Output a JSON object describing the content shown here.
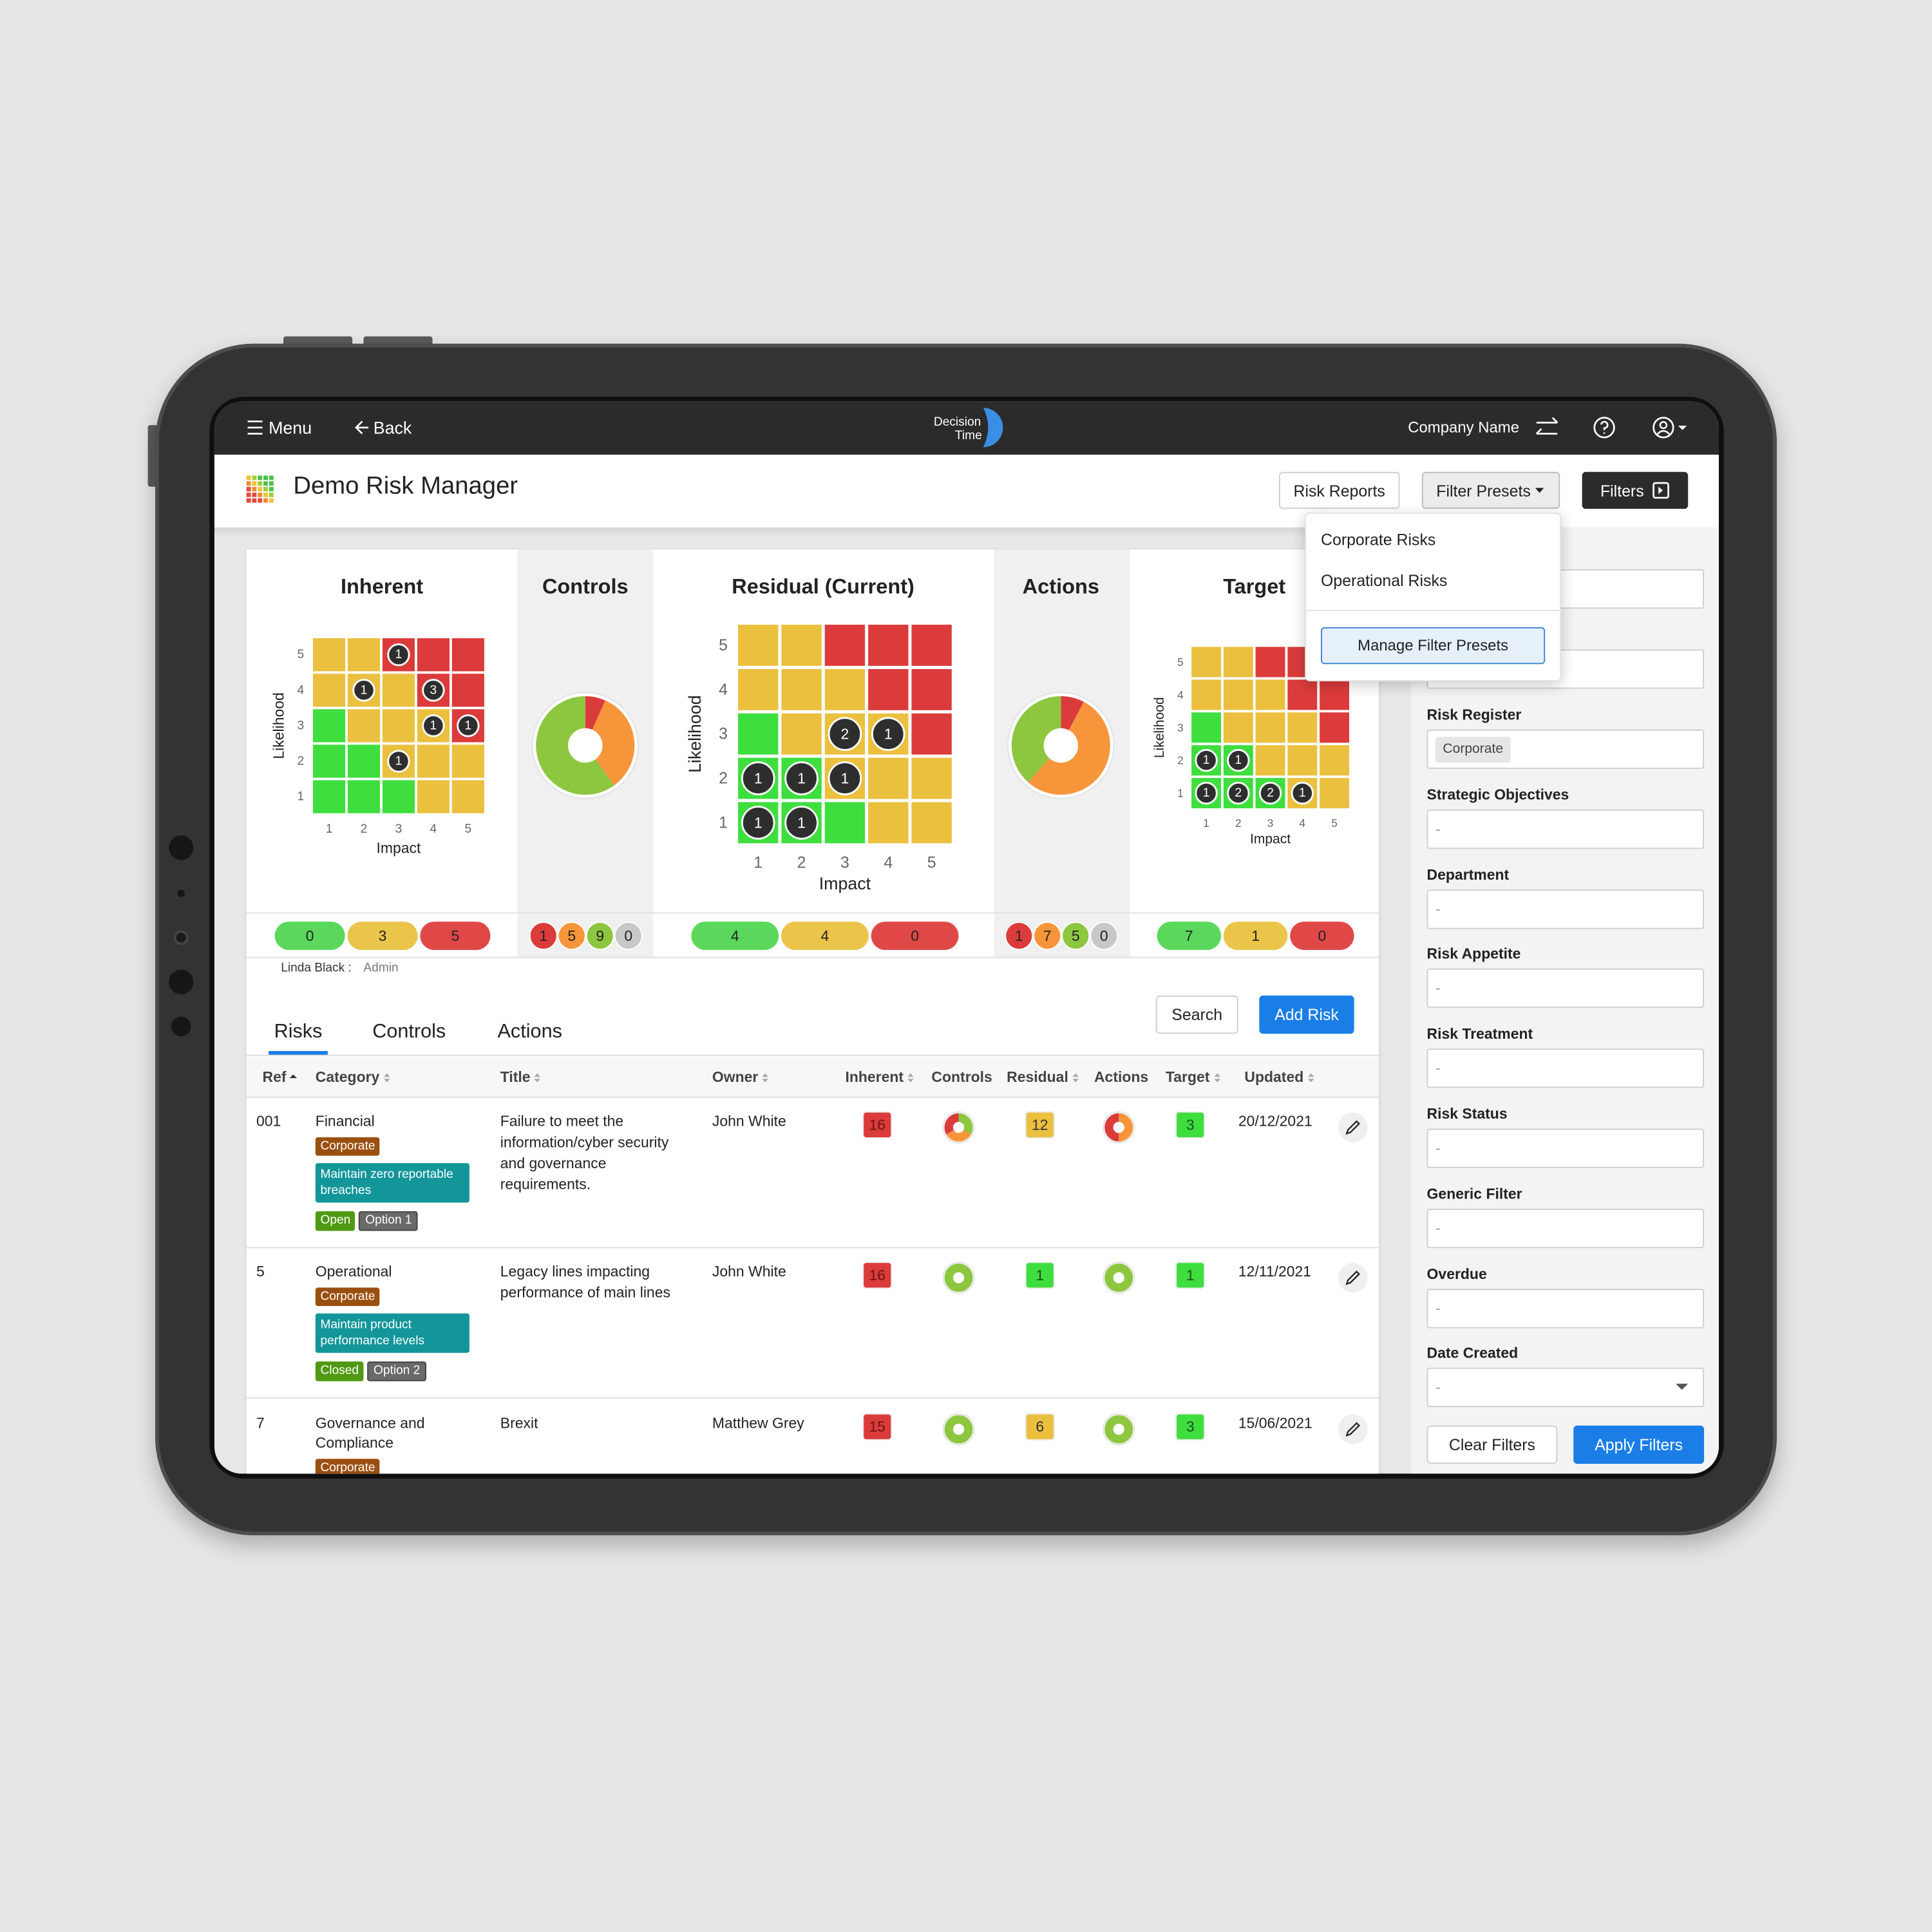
{
  "topbar": {
    "menu": "Menu",
    "back": "Back",
    "logo": [
      "Decision",
      "Time"
    ],
    "company": "Company Name"
  },
  "header": {
    "title": "Demo Risk Manager",
    "buttons": [
      "Risk Reports",
      "Filter Presets",
      "Filters"
    ]
  },
  "presets_menu": {
    "items": [
      "Corporate Risks",
      "Operational Risks"
    ],
    "manage": "Manage Filter Presets"
  },
  "dashboard": {
    "matrix_colors": [
      [
        "#ebc03f",
        "#ebc03f",
        "#dc3b3b",
        "#dc3b3b",
        "#dc3b3b"
      ],
      [
        "#ebc03f",
        "#ebc03f",
        "#ebc03f",
        "#dc3b3b",
        "#dc3b3b"
      ],
      [
        "#3ede3e",
        "#ebc03f",
        "#ebc03f",
        "#ebc03f",
        "#dc3b3b"
      ],
      [
        "#3ede3e",
        "#3ede3e",
        "#ebc03f",
        "#ebc03f",
        "#ebc03f"
      ],
      [
        "#3ede3e",
        "#3ede3e",
        "#3ede3e",
        "#ebc03f",
        "#ebc03f"
      ]
    ],
    "panels": [
      {
        "type": "matrix",
        "title": "Inherent",
        "xlabel": "Impact",
        "ylabel": "Likelihood",
        "xticks": [
          1,
          2,
          3,
          4,
          5
        ],
        "yticks": [
          1,
          2,
          3,
          4,
          5
        ],
        "bubbles": [
          {
            "likelihood": 5,
            "impact": 3,
            "count": 1
          },
          {
            "likelihood": 4,
            "impact": 2,
            "count": 1
          },
          {
            "likelihood": 4,
            "impact": 4,
            "count": 3
          },
          {
            "likelihood": 3,
            "impact": 4,
            "count": 1
          },
          {
            "likelihood": 3,
            "impact": 5,
            "count": 1
          },
          {
            "likelihood": 2,
            "impact": 3,
            "count": 1
          }
        ],
        "summary": [
          {
            "value": 0,
            "color": "#5bd85b"
          },
          {
            "value": 3,
            "color": "#ebc44a"
          },
          {
            "value": 5,
            "color": "#e04848"
          }
        ]
      },
      {
        "type": "donut",
        "title": "Controls",
        "summary": [
          {
            "value": 1,
            "color": "#dc3b3b"
          },
          {
            "value": 5,
            "color": "#f7953a"
          },
          {
            "value": 9,
            "color": "#8dc63f"
          },
          {
            "value": 0,
            "color": "#c8c8c8"
          }
        ]
      },
      {
        "type": "matrix",
        "title": "Residual (Current)",
        "xlabel": "Impact",
        "ylabel": "Likelihood",
        "xticks": [
          1,
          2,
          3,
          4,
          5
        ],
        "yticks": [
          1,
          2,
          3,
          4,
          5
        ],
        "bubbles": [
          {
            "likelihood": 3,
            "impact": 3,
            "count": 2
          },
          {
            "likelihood": 3,
            "impact": 4,
            "count": 1
          },
          {
            "likelihood": 2,
            "impact": 1,
            "count": 1
          },
          {
            "likelihood": 2,
            "impact": 2,
            "count": 1
          },
          {
            "likelihood": 2,
            "impact": 3,
            "count": 1
          },
          {
            "likelihood": 1,
            "impact": 1,
            "count": 1
          },
          {
            "likelihood": 1,
            "impact": 2,
            "count": 1
          }
        ],
        "summary": [
          {
            "value": 4,
            "color": "#5bd85b"
          },
          {
            "value": 4,
            "color": "#ebc44a"
          },
          {
            "value": 0,
            "color": "#e04848"
          }
        ]
      },
      {
        "type": "donut",
        "title": "Actions",
        "summary": [
          {
            "value": 1,
            "color": "#dc3b3b"
          },
          {
            "value": 7,
            "color": "#f7953a"
          },
          {
            "value": 5,
            "color": "#8dc63f"
          },
          {
            "value": 0,
            "color": "#c8c8c8"
          }
        ]
      },
      {
        "type": "matrix",
        "title": "Target",
        "xlabel": "Impact",
        "ylabel": "Likelihood",
        "xticks": [
          1,
          2,
          3,
          4,
          5
        ],
        "yticks": [
          1,
          2,
          3,
          4,
          5
        ],
        "bubbles": [
          {
            "likelihood": 2,
            "impact": 1,
            "count": 1
          },
          {
            "likelihood": 2,
            "impact": 2,
            "count": 1
          },
          {
            "likelihood": 1,
            "impact": 1,
            "count": 1
          },
          {
            "likelihood": 1,
            "impact": 2,
            "count": 2
          },
          {
            "likelihood": 1,
            "impact": 3,
            "count": 2
          },
          {
            "likelihood": 1,
            "impact": 4,
            "count": 1
          }
        ],
        "summary": [
          {
            "value": 7,
            "color": "#5bd85b"
          },
          {
            "value": 1,
            "color": "#ebc44a"
          },
          {
            "value": 0,
            "color": "#e04848"
          }
        ]
      }
    ]
  },
  "user": {
    "name": "Linda Black :",
    "role": "Admin"
  },
  "tabs": [
    "Risks",
    "Controls",
    "Actions"
  ],
  "toolbar": [
    "Search",
    "Add Risk"
  ],
  "table": {
    "columns": [
      "Ref",
      "Category",
      "Title",
      "Owner",
      "Inherent",
      "Controls",
      "Residual",
      "Actions",
      "Target",
      "Updated"
    ],
    "rows": [
      {
        "ref": "001",
        "category": "Financial",
        "register": "Corporate",
        "objective": "Maintain zero reportable breaches",
        "status": "Open",
        "option": "Option 1",
        "title": "Failure to meet the information/cyber security and governance requirements.",
        "owner": "John White",
        "inherent": 16,
        "controls": [
          "#8dc63f",
          "#f7953a",
          "#dc3b3b"
        ],
        "residual": 12,
        "actions": [
          "#f7953a",
          "#dc3b3b"
        ],
        "target": 3,
        "updated": "20/12/2021"
      },
      {
        "ref": "5",
        "category": "Operational",
        "register": "Corporate",
        "objective": "Maintain product performance levels",
        "status": "Closed",
        "option": "Option 2",
        "title": "Legacy lines impacting performance of main lines",
        "owner": "John White",
        "inherent": 16,
        "controls": [
          "#8dc63f"
        ],
        "residual": 1,
        "actions": [
          "#8dc63f"
        ],
        "target": 1,
        "updated": "12/11/2021"
      },
      {
        "ref": "7",
        "category": "Governance and Compliance",
        "register": "Corporate",
        "title": "Brexit",
        "owner": "Matthew Grey",
        "inherent": 15,
        "controls": [
          "#8dc63f"
        ],
        "residual": 6,
        "actions": [
          "#8dc63f"
        ],
        "target": 3,
        "updated": "15/06/2021"
      }
    ]
  },
  "filters": {
    "fields": [
      {
        "label": "Risk Register",
        "chip": "Corporate"
      },
      {
        "label": "Strategic Objectives",
        "value": "-"
      },
      {
        "label": "Department",
        "value": "-"
      },
      {
        "label": "Risk Appetite",
        "value": "-"
      },
      {
        "label": "Risk Treatment",
        "value": "-"
      },
      {
        "label": "Risk Status",
        "value": "-"
      },
      {
        "label": "Generic Filter",
        "value": "-"
      },
      {
        "label": "Overdue",
        "value": "-"
      },
      {
        "label": "Date Created",
        "value": "-",
        "dropdown": true
      }
    ],
    "buttons": [
      "Clear Filters",
      "Apply Filters"
    ]
  }
}
